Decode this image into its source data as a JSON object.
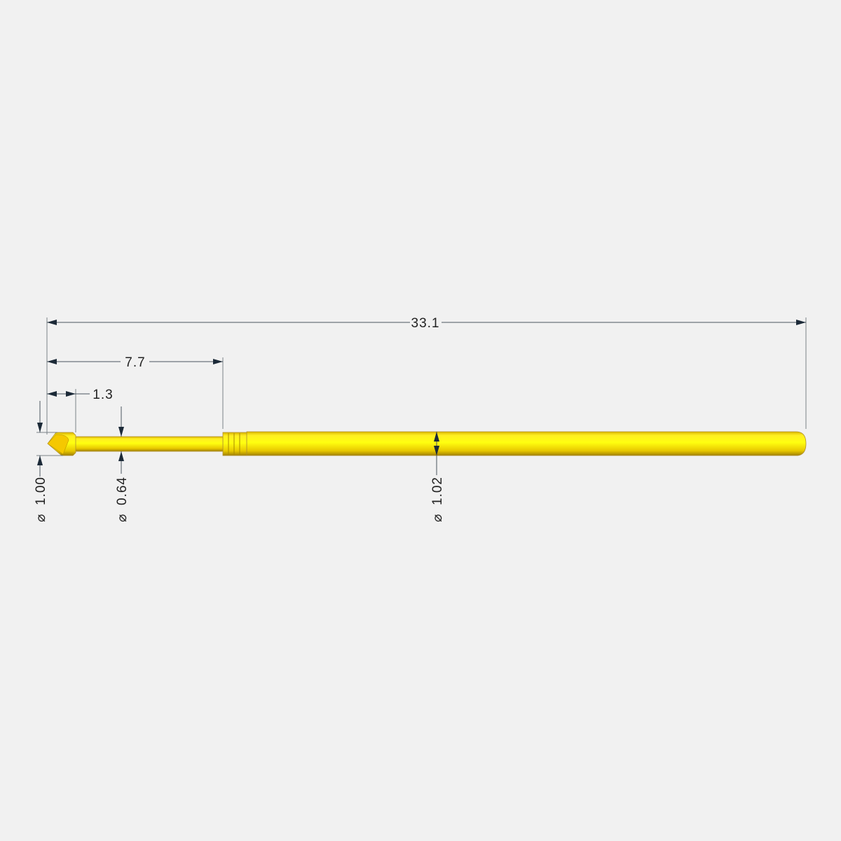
{
  "drawing": {
    "body_color": "#ffee00",
    "background_color": "#f1f1f1",
    "dimensions": {
      "overall_length": "33.1",
      "plunger_length": "7.7",
      "tip_length": "1.3",
      "tip_diameter": "1.00",
      "plunger_diameter": "0.64",
      "barrel_diameter": "1.02",
      "diameter_symbol": "⌀"
    }
  }
}
